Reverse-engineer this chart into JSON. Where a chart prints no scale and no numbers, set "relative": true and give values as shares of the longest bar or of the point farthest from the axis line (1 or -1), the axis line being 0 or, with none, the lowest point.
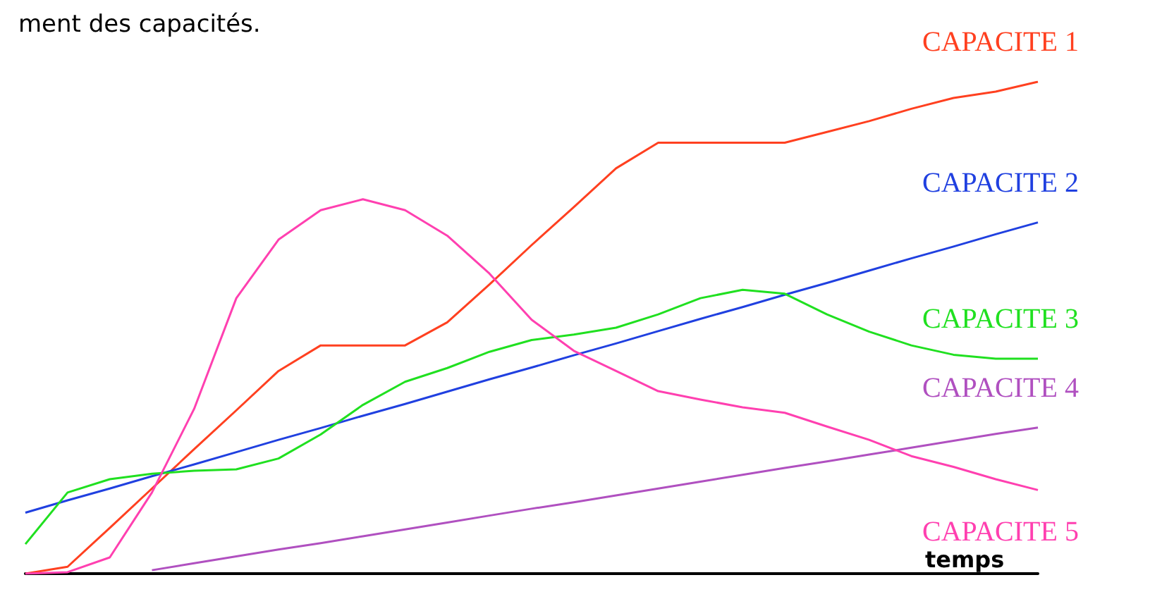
{
  "chart_data": {
    "type": "line",
    "relative": true,
    "title": "ment des capacités.",
    "xlabel": "temps",
    "categories": [
      null,
      null,
      null,
      null,
      null,
      null,
      null,
      null,
      null,
      null,
      null,
      null,
      null,
      null,
      null,
      null,
      null,
      null,
      null,
      null,
      null,
      null,
      null,
      null,
      null
    ],
    "series": [
      {
        "name": "CAPACITE 1",
        "color": "#ff4020",
        "values": [
          0,
          0.014,
          0.093,
          0.173,
          0.253,
          0.332,
          0.412,
          0.464,
          0.464,
          0.464,
          0.511,
          0.588,
          0.668,
          0.745,
          0.824,
          0.876,
          0.876,
          0.876,
          0.876,
          0.898,
          0.92,
          0.945,
          0.967,
          0.98,
          1
        ]
      },
      {
        "name": "CAPACITE 2",
        "color": "#2040e0",
        "values": [
          0.124,
          0.149,
          0.173,
          0.198,
          0.222,
          0.247,
          0.272,
          0.296,
          0.321,
          0.345,
          0.37,
          0.395,
          0.419,
          0.444,
          0.468,
          0.493,
          0.518,
          0.542,
          0.567,
          0.591,
          0.616,
          0.641,
          0.665,
          0.69,
          0.714
        ]
      },
      {
        "name": "CAPACITE 3",
        "color": "#20e020",
        "values": [
          0.06,
          0.165,
          0.192,
          0.203,
          0.209,
          0.212,
          0.234,
          0.283,
          0.343,
          0.39,
          0.418,
          0.451,
          0.475,
          0.486,
          0.5,
          0.527,
          0.56,
          0.577,
          0.569,
          0.527,
          0.492,
          0.464,
          0.445,
          0.437,
          0.437
        ]
      },
      {
        "name": "CAPACITE 4",
        "color": "#b050c0",
        "values": [
          null,
          null,
          null,
          0.007,
          0.021,
          0.035,
          0.049,
          0.062,
          0.076,
          0.09,
          0.104,
          0.118,
          0.132,
          0.145,
          0.159,
          0.173,
          0.187,
          0.201,
          0.215,
          0.228,
          0.242,
          0.256,
          0.27,
          0.284,
          0.297
        ]
      },
      {
        "name": "CAPACITE 5",
        "color": "#ff40b0",
        "values": [
          0,
          0.003,
          0.033,
          0.165,
          0.335,
          0.56,
          0.679,
          0.739,
          0.761,
          0.739,
          0.687,
          0.61,
          0.516,
          0.453,
          0.412,
          0.371,
          0.354,
          0.338,
          0.327,
          0.299,
          0.272,
          0.239,
          0.217,
          0.192,
          0.17
        ]
      }
    ]
  }
}
